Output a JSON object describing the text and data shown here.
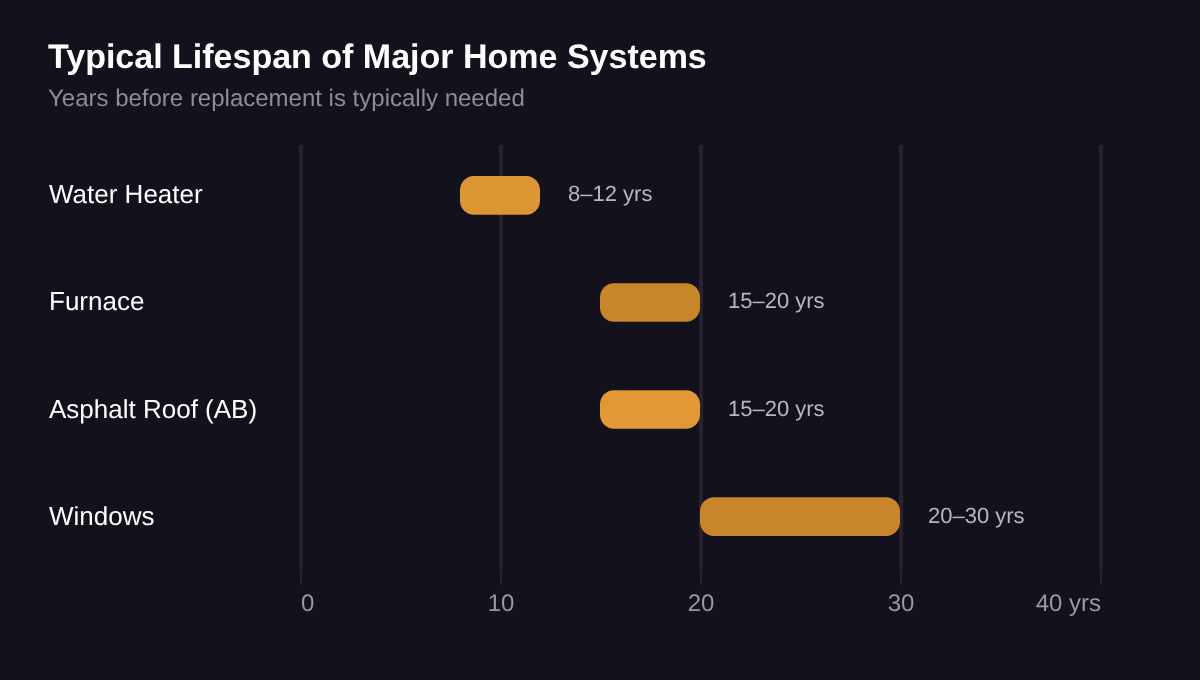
{
  "chart_data": {
    "type": "bar",
    "orientation": "horizontal",
    "title": "Typical Lifespan of Major Home Systems",
    "subtitle": "Years before replacement is typically needed",
    "categories": [
      "Water Heater",
      "Furnace",
      "Asphalt Roof (AB)",
      "Windows"
    ],
    "base": [
      8,
      15,
      15,
      20
    ],
    "values": [
      4,
      5,
      5,
      10
    ],
    "colors": [
      "#dc9634",
      "#c8862c",
      "#e29836",
      "#c8862c"
    ],
    "value_labels": [
      "8–12 yrs",
      "15–20 yrs",
      "15–20 yrs",
      "20–30 yrs"
    ],
    "xlim": [
      0,
      40
    ],
    "xticks": [
      0,
      10,
      20,
      30,
      {
        "value": 40,
        "label": "40 yrs"
      }
    ],
    "grid": "x"
  }
}
